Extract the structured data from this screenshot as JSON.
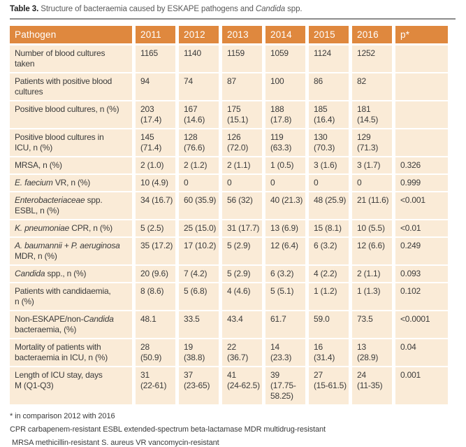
{
  "colors": {
    "header_bg": "#DF883E",
    "header_text": "#FFFFFF",
    "cell_bg": "#FAEBD7",
    "body_text": "#3B3B3B",
    "title_label": "#1F1F1F",
    "title_text": "#595959",
    "rule": "#8C8C8C"
  },
  "title": {
    "segments": [
      {
        "t": "Table 3.",
        "b": true
      },
      {
        "t": " Structure of bacteraemia caused by ESKAPE pathogens and "
      },
      {
        "t": "Candida",
        "i": true
      },
      {
        "t": " spp."
      }
    ]
  },
  "chart_data": {
    "type": "table",
    "title": "Table 3. Structure of bacteraemia caused by ESKAPE pathogens and Candida spp.",
    "columns": [
      "Pathogen",
      "2011",
      "2012",
      "2013",
      "2014",
      "2015",
      "2016",
      "p*"
    ]
  },
  "table": {
    "headers": [
      "Pathogen",
      "2011",
      "2012",
      "2013",
      "2014",
      "2015",
      "2016",
      "p*"
    ],
    "rows": [
      {
        "label": [
          {
            "t": "Number of blood cultures\ntaken"
          }
        ],
        "values": [
          "1165",
          "1140",
          "1159",
          "1059",
          "1124",
          "1252"
        ],
        "p": ""
      },
      {
        "label": [
          {
            "t": "Patients with positive blood\ncultures"
          }
        ],
        "values": [
          "94",
          "74",
          "87",
          "100",
          "86",
          "82"
        ],
        "p": ""
      },
      {
        "label": [
          {
            "t": "Positive blood cultures, n (%)"
          }
        ],
        "values": [
          "203\n(17.4)",
          "167\n(14.6)",
          "175\n(15.1)",
          "188\n(17.8)",
          "185\n(16.4)",
          "181\n(14.5)"
        ],
        "p": ""
      },
      {
        "label": [
          {
            "t": "Positive blood cultures in\nICU, n (%)"
          }
        ],
        "values": [
          "145\n(71.4)",
          "128\n(76.6)",
          "126\n(72.0)",
          "119\n(63.3)",
          "130\n(70.3)",
          "129\n(71.3)"
        ],
        "p": ""
      },
      {
        "label": [
          {
            "t": "MRSA, n (%)"
          }
        ],
        "values": [
          "2 (1.0)",
          "2 (1.2)",
          "2 (1.1)",
          "1 (0.5)",
          "3 (1.6)",
          "3 (1.7)"
        ],
        "p": "0.326"
      },
      {
        "label": [
          {
            "t": "E. faecium",
            "i": true
          },
          {
            "t": " VR, n (%)"
          }
        ],
        "values": [
          "10 (4.9)",
          "0",
          "0",
          "0",
          "0",
          "0"
        ],
        "p": "0.999"
      },
      {
        "label": [
          {
            "t": "Enterobacteriaceae",
            "i": true
          },
          {
            "t": " spp.\nESBL, n (%)"
          }
        ],
        "values": [
          "34 (16.7)",
          "60 (35.9)",
          "56 (32)",
          "40 (21.3)",
          "48 (25.9)",
          "21 (11.6)"
        ],
        "p": "<0.001"
      },
      {
        "label": [
          {
            "t": "K. pneumoniae",
            "i": true
          },
          {
            "t": " CPR, n (%)"
          }
        ],
        "values": [
          "5 (2.5)",
          "25 (15.0)",
          "31 (17.7)",
          "13 (6.9)",
          "15 (8.1)",
          "10 (5.5)"
        ],
        "p": "<0.01"
      },
      {
        "label": [
          {
            "t": "A. baumannii + P. aeruginosa",
            "i": true
          },
          {
            "t": "\nMDR, n (%)"
          }
        ],
        "values": [
          "35 (17.2)",
          "17 (10.2)",
          "5 (2.9)",
          "12 (6.4)",
          "6 (3.2)",
          "12 (6.6)"
        ],
        "p": "0.249"
      },
      {
        "label": [
          {
            "t": "Candida",
            "i": true
          },
          {
            "t": " spp., n (%)"
          }
        ],
        "values": [
          "20 (9.6)",
          "7 (4.2)",
          "5 (2.9)",
          "6 (3.2)",
          "4 (2.2)",
          "2 (1.1)"
        ],
        "p": "0.093"
      },
      {
        "label": [
          {
            "t": "Patients with candidaemia,\nn (%)"
          }
        ],
        "values": [
          "8 (8.6)",
          "5 (6.8)",
          "4 (4.6)",
          "5 (5.1)",
          "1 (1.2)",
          "1 (1.3)"
        ],
        "p": "0.102"
      },
      {
        "label": [
          {
            "t": "Non-ESKAPE/non-"
          },
          {
            "t": "Candida",
            "i": true
          },
          {
            "t": "\nbacteraemia, (%)"
          }
        ],
        "values": [
          "48.1",
          "33.5",
          "43.4",
          "61.7",
          "59.0",
          "73.5"
        ],
        "p": "<0.0001"
      },
      {
        "label": [
          {
            "t": "Mortality of patients with\nbacteraemia in ICU, n (%)"
          }
        ],
        "values": [
          "28\n(50.9)",
          "19\n(38.8)",
          "22\n(36.7)",
          "14\n(23.3)",
          "16\n(31.4)",
          "13\n(28.9)"
        ],
        "p": "0.04"
      },
      {
        "label": [
          {
            "t": "Length of ICU stay, days\nM (Q1-Q3)"
          }
        ],
        "values": [
          "31\n(22-61)",
          "37\n(23-65)",
          "41\n(24-62.5)",
          "39\n(17.75-\n58.25)",
          "27\n(15-61.5)",
          "24\n(11-35)"
        ],
        "p": "0.001"
      }
    ]
  },
  "footnotes": [
    "* in comparison 2012 with 2016",
    "CPR carbapenem-resistant ESBL extended-spectrum beta-lactamase MDR multidrug-resistant",
    "MRSA methicillin-resistant S. aureus VR vancomycin-resistant"
  ]
}
